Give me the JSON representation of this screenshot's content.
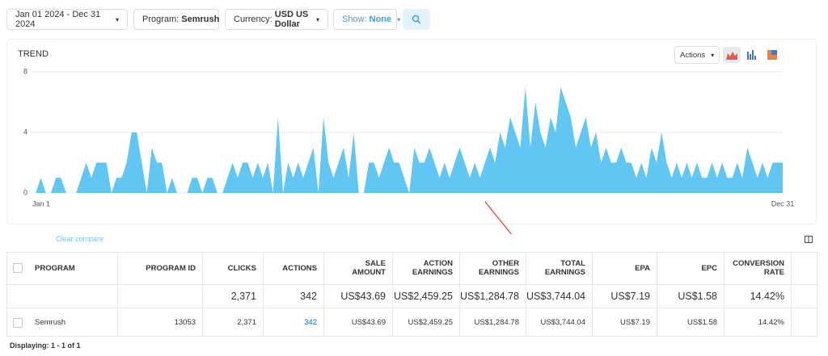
{
  "filters": {
    "date": "Jan 01 2024 - Dec 31 2024",
    "program": {
      "label": "Program:",
      "value": "Semrush"
    },
    "currency": {
      "label": "Currency:",
      "value": "USD US Dollar"
    },
    "show": {
      "label": "Show:",
      "value": "None"
    }
  },
  "chart_actions": "Actions",
  "chart_data": {
    "type": "area",
    "title": "TREND",
    "color": "#62c6f2",
    "ylim": [
      0,
      8
    ],
    "yticks": [
      0,
      4,
      8
    ],
    "grid": true,
    "categories": [
      "Jan 1",
      null,
      null,
      null,
      null,
      null,
      null,
      null,
      null,
      null,
      null,
      null,
      null,
      null,
      null,
      null,
      null,
      null,
      null,
      null,
      null,
      null,
      null,
      null,
      null,
      null,
      null,
      null,
      null,
      null,
      null,
      null,
      null,
      null,
      null,
      null,
      null,
      null,
      null,
      null,
      null,
      null,
      null,
      null,
      null,
      null,
      null,
      null,
      null,
      null,
      null,
      null,
      null,
      null,
      null,
      null,
      null,
      null,
      null,
      null,
      null,
      null,
      null,
      null,
      null,
      null,
      null,
      null,
      null,
      null,
      null,
      null,
      null,
      null,
      null,
      null,
      null,
      null,
      null,
      null,
      null,
      null,
      null,
      null,
      null,
      null,
      null,
      null,
      null,
      null,
      null,
      null,
      null,
      null,
      null,
      null,
      null,
      null,
      null,
      null,
      null,
      null,
      null,
      null,
      null,
      null,
      null,
      null,
      null,
      null,
      null,
      null,
      null,
      null,
      null,
      null,
      null,
      null,
      null,
      null,
      null,
      null,
      null,
      null,
      null,
      null,
      null,
      null,
      null,
      null,
      null,
      null,
      null,
      null,
      null,
      null,
      null,
      null,
      null,
      null,
      null,
      null,
      null,
      null,
      null,
      null,
      null,
      null,
      null,
      "Dec 31"
    ],
    "values": [
      0,
      0,
      1,
      0,
      0,
      1,
      1,
      0,
      0,
      0,
      1,
      2,
      1,
      2,
      2,
      2,
      0,
      1,
      1,
      2,
      4,
      4,
      2,
      0,
      3,
      2,
      2,
      0,
      1,
      0,
      0,
      0,
      1,
      1,
      0,
      1,
      1,
      0,
      0,
      1,
      2,
      1,
      2,
      2,
      1,
      2,
      1,
      2,
      0,
      5,
      0,
      2,
      1,
      2,
      1,
      2,
      3,
      0,
      5,
      2,
      1,
      2,
      3,
      1,
      4,
      0,
      0,
      2,
      2,
      1,
      2,
      3,
      2,
      2,
      1,
      0,
      3,
      2,
      2,
      3,
      2,
      1,
      2,
      1,
      2,
      3,
      2,
      1,
      2,
      1,
      2,
      3,
      2,
      4,
      3,
      5,
      4,
      3,
      7,
      3,
      6,
      4,
      3,
      5,
      4,
      7,
      6,
      5,
      3,
      4,
      5,
      3,
      4,
      2,
      3,
      2,
      2,
      3,
      2,
      2,
      1,
      2,
      1,
      3,
      2,
      4,
      2,
      1,
      2,
      1,
      2,
      1,
      2,
      1,
      1,
      2,
      1,
      2,
      1,
      1,
      2,
      1,
      3,
      2,
      1,
      2,
      1,
      2,
      2,
      2
    ]
  },
  "compare_link": "Clear compare",
  "table": {
    "columns": [
      "PROGRAM",
      "PROGRAM ID",
      "CLICKS",
      "ACTIONS",
      "SALE AMOUNT",
      "ACTION EARNINGS",
      "OTHER EARNINGS",
      "TOTAL EARNINGS",
      "EPA",
      "EPC",
      "CONVERSION RATE"
    ],
    "totals": [
      "2,371",
      "342",
      "US$43.69",
      "US$2,459.25",
      "US$1,284.78",
      "US$3,744.04",
      "US$7.19",
      "US$1.58",
      "14.42%"
    ],
    "rows": [
      [
        "Semrush",
        "13053",
        "2,371",
        "342",
        "US$43.69",
        "US$2,459.25",
        "US$1,284.78",
        "US$3,744.04",
        "US$7.19",
        "US$1.58",
        "14.42%"
      ]
    ]
  },
  "footer": "Displaying: 1 - 1 of 1"
}
